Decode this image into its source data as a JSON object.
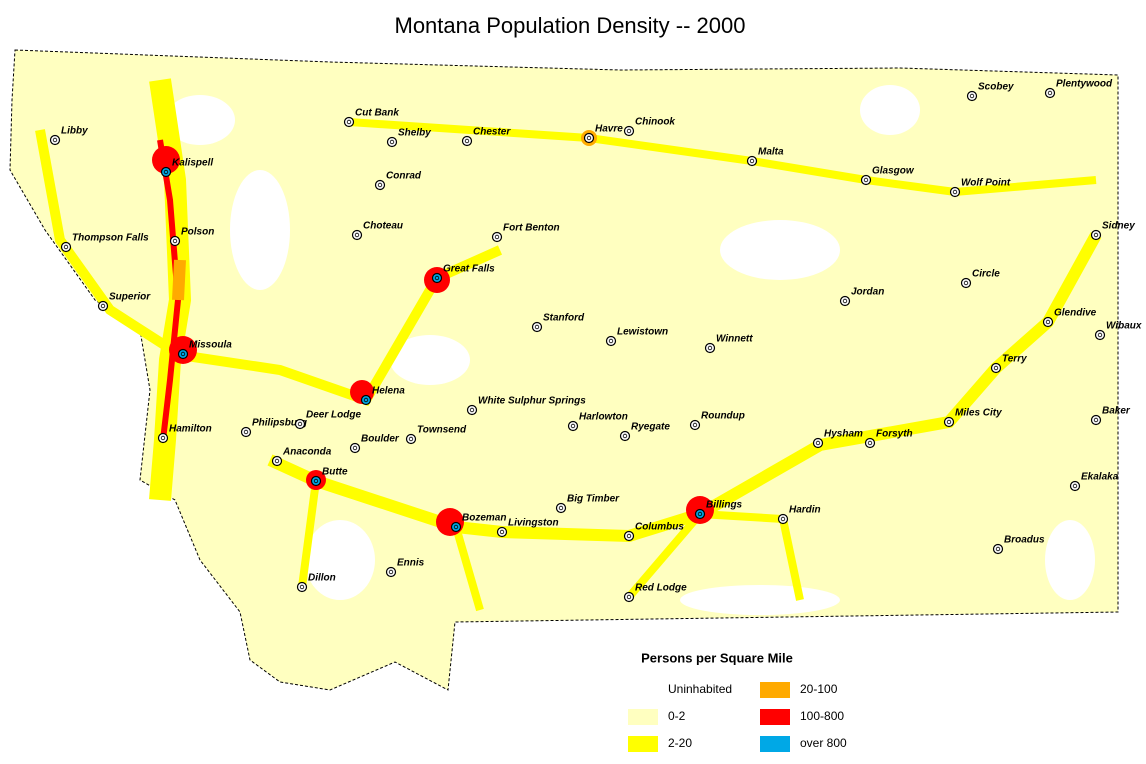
{
  "title": "Montana Population Density -- 2000",
  "cities": [
    "Libby",
    "Kalispell",
    "Thompson Falls",
    "Polson",
    "Superior",
    "Missoula",
    "Hamilton",
    "Philipsburg",
    "Deer Lodge",
    "Anaconda",
    "Butte",
    "Helena",
    "Boulder",
    "Townsend",
    "Dillon",
    "Ennis",
    "Bozeman",
    "Livingston",
    "Cut Bank",
    "Shelby",
    "Conrad",
    "Choteau",
    "Great Falls",
    "Chester",
    "Havre",
    "Chinook",
    "Fort Benton",
    "Stanford",
    "Lewistown",
    "White Sulphur Springs",
    "Harlowton",
    "Ryegate",
    "Roundup",
    "Big Timber",
    "Columbus",
    "Billings",
    "Red Lodge",
    "Malta",
    "Glasgow",
    "Scobey",
    "Plentywood",
    "Wolf Point",
    "Sidney",
    "Circle",
    "Jordan",
    "Winnett",
    "Glendive",
    "Wibaux",
    "Terry",
    "Miles City",
    "Baker",
    "Hysham",
    "Forsyth",
    "Hardin",
    "Ekalaka",
    "Broadus"
  ],
  "legend": {
    "title": "Persons per Square Mile",
    "items": [
      {
        "label": "Uninhabited",
        "color": "#ffffff"
      },
      {
        "label": "0-2",
        "color": "#ffffc0"
      },
      {
        "label": "2-20",
        "color": "#ffff00"
      },
      {
        "label": "20-100",
        "color": "#ffaa00"
      },
      {
        "label": "100-800",
        "color": "#ff0000"
      },
      {
        "label": "over 800",
        "color": "#00a8e6"
      }
    ]
  }
}
